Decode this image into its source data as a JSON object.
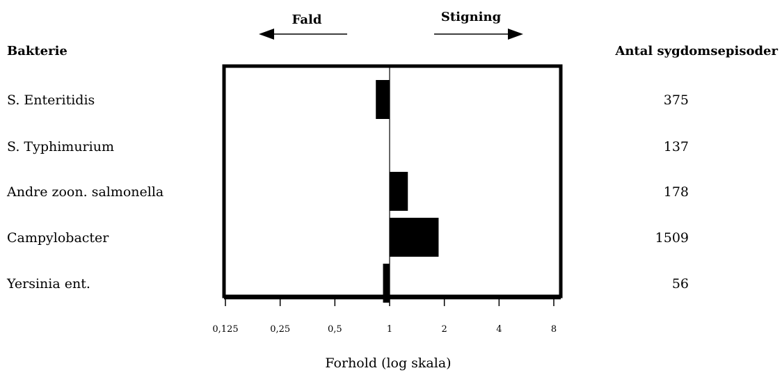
{
  "chart_data": {
    "type": "bar",
    "orientation": "horizontal",
    "scale": "log2",
    "baseline": 1,
    "xlabel": "Forhold (log skala)",
    "xlim": [
      0.125,
      8
    ],
    "ticks": [
      "0,125",
      "0,25",
      "0,5",
      "1",
      "2",
      "4",
      "8"
    ],
    "tick_values": [
      0.125,
      0.25,
      0.5,
      1,
      2,
      4,
      8
    ],
    "row_header": "Bakterie",
    "count_header": "Antal sygdomsepisoder",
    "direction_labels": {
      "decrease": "Fald",
      "increase": "Stigning"
    },
    "categories": [
      "S. Enteritidis",
      "S. Typhimurium",
      "Andre zoon. salmonella",
      "Campylobacter",
      "Yersinia ent."
    ],
    "values": [
      0.84,
      1.0,
      1.26,
      1.86,
      0.92
    ],
    "counts": [
      "375",
      "137",
      "178",
      "1509",
      "56"
    ],
    "colors": {
      "bar": "#000000",
      "frame": "#000000",
      "background": "#ffffff"
    }
  }
}
